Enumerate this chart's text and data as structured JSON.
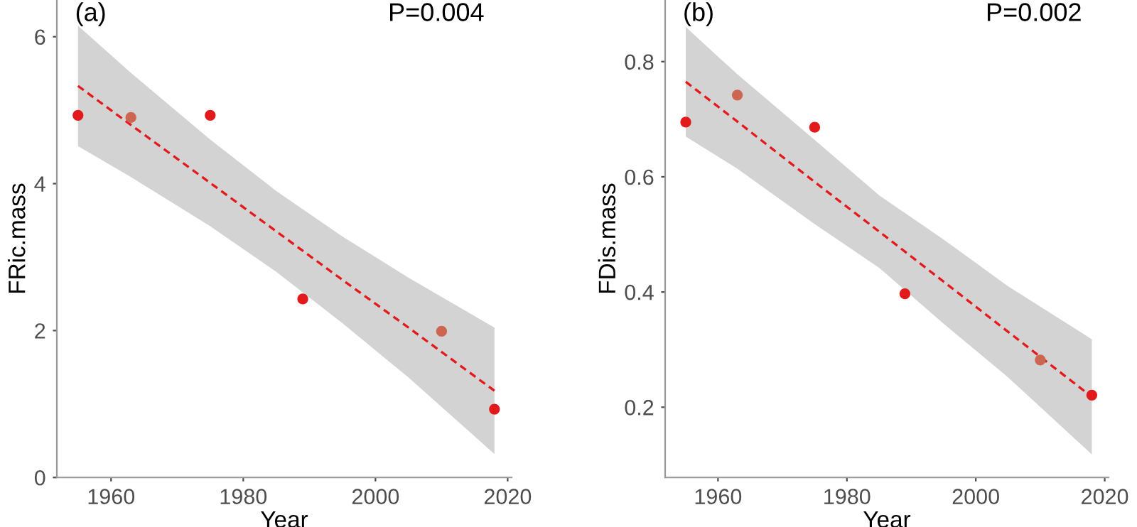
{
  "chart_data": [
    {
      "type": "scatter",
      "xlabel": "Year",
      "ylabel": "FRic.mass",
      "annotations": [
        "(a)",
        "P=0.004"
      ],
      "xlim": [
        1951.8,
        2020.6
      ],
      "xticks": [
        1960,
        1980,
        2000,
        2020
      ],
      "ylim": [
        0,
        6.5
      ],
      "yticks": [
        0,
        2,
        4,
        6
      ],
      "grid": false,
      "series": [
        {
          "marker": "circle",
          "x": [
            1955,
            1963,
            1975,
            1989,
            2010,
            2018
          ],
          "values": [
            4.93,
            4.9,
            4.93,
            2.43,
            1.99,
            0.93
          ],
          "colors": [
            "#e31a1c",
            "#cd6650",
            "#e31a1c",
            "#e31a1c",
            "#cd6650",
            "#e31a1c"
          ]
        },
        {
          "type": "line",
          "line_style": "dashed",
          "color": "#e31a1c",
          "x": [
            1955,
            1963,
            1975,
            1985,
            1995,
            2005,
            2018
          ],
          "values": [
            5.33,
            4.8,
            4.01,
            3.35,
            2.69,
            2.04,
            1.18
          ],
          "lower": [
            4.51,
            4.09,
            3.42,
            2.8,
            2.1,
            1.36,
            0.32
          ],
          "upper": [
            6.15,
            5.51,
            4.6,
            3.9,
            3.28,
            2.72,
            2.04
          ]
        }
      ]
    },
    {
      "type": "scatter",
      "xlabel": "Year",
      "ylabel": "FDis.mass",
      "annotations": [
        "(b)",
        "P=0.002"
      ],
      "xlim": [
        1951.8,
        2020.6
      ],
      "xticks": [
        1960,
        1980,
        2000,
        2020
      ],
      "ylim": [
        0.078,
        0.907
      ],
      "yticks": [
        0.2,
        0.4,
        0.6,
        0.8
      ],
      "grid": false,
      "series": [
        {
          "marker": "circle",
          "x": [
            1955,
            1963,
            1975,
            1989,
            2010,
            2018
          ],
          "values": [
            0.695,
            0.742,
            0.686,
            0.397,
            0.282,
            0.221
          ],
          "colors": [
            "#e31a1c",
            "#cd6650",
            "#e31a1c",
            "#e31a1c",
            "#cd6650",
            "#e31a1c"
          ]
        },
        {
          "type": "line",
          "line_style": "dashed",
          "color": "#e31a1c",
          "x": [
            1955,
            1963,
            1975,
            1985,
            1995,
            2005,
            2018
          ],
          "values": [
            0.765,
            0.696,
            0.591,
            0.505,
            0.418,
            0.331,
            0.218
          ],
          "lower": [
            0.67,
            0.614,
            0.518,
            0.442,
            0.345,
            0.252,
            0.118
          ],
          "upper": [
            0.86,
            0.778,
            0.664,
            0.568,
            0.491,
            0.41,
            0.318
          ]
        }
      ]
    }
  ]
}
